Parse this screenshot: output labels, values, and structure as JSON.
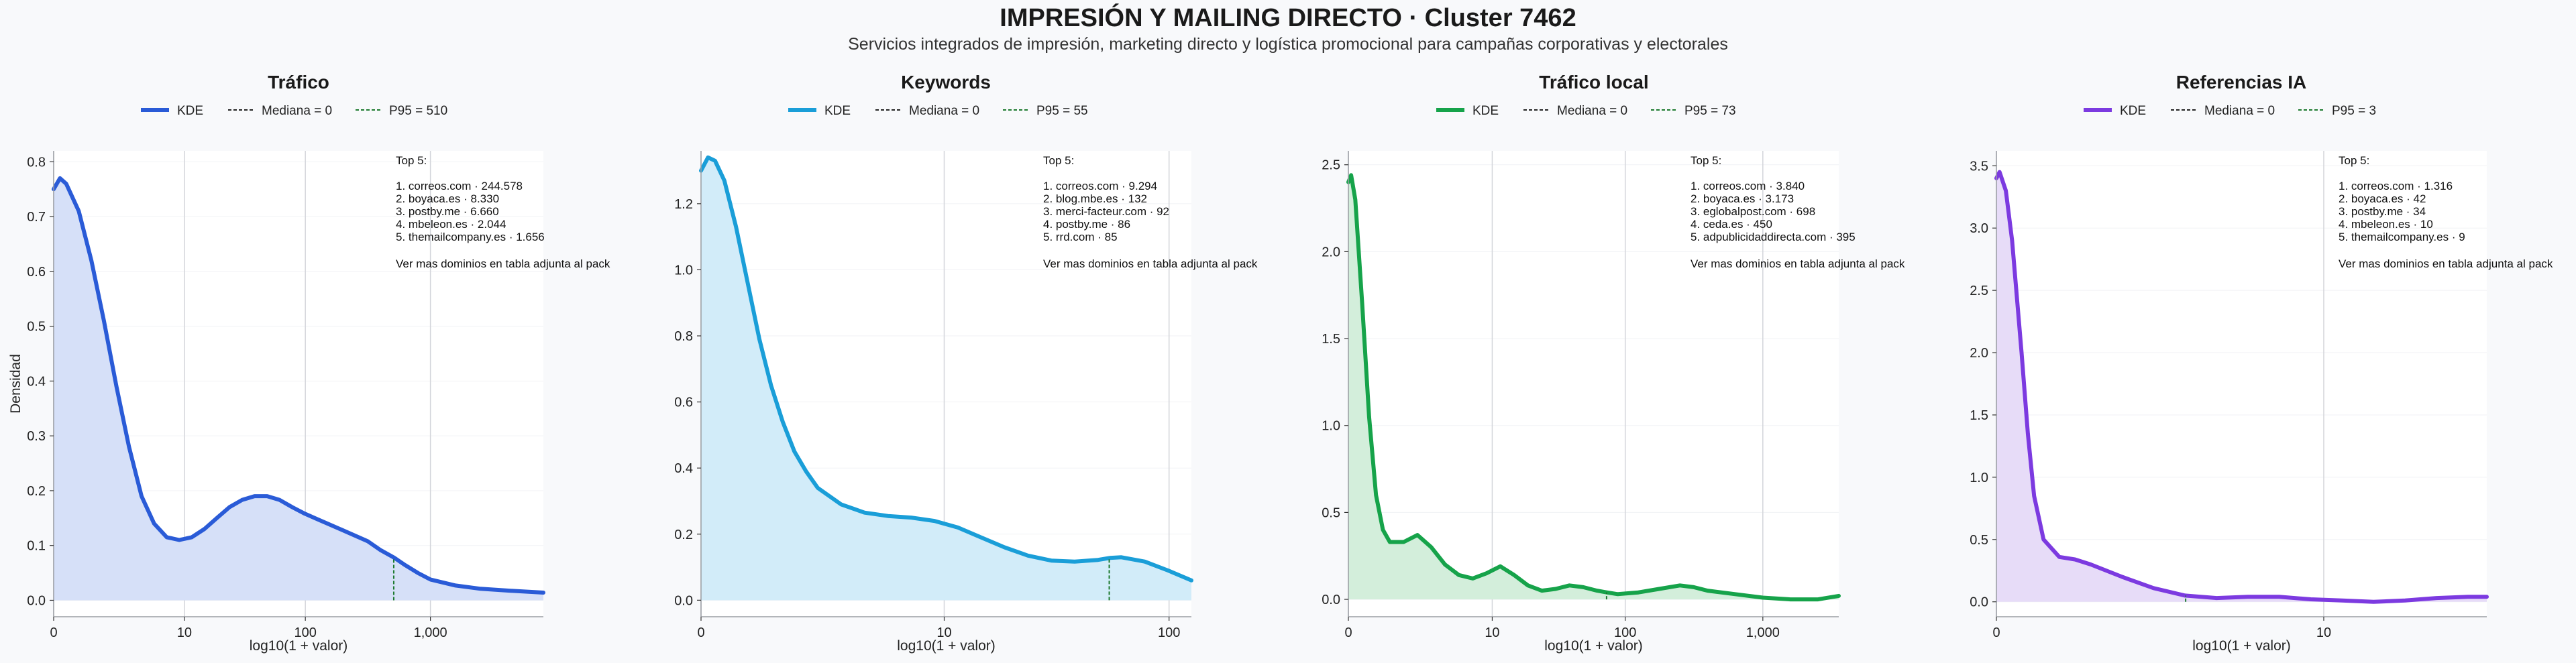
{
  "page": {
    "title": "IMPRESIÓN Y MAILING DIRECTO · Cluster 7462",
    "subtitle": "Servicios integrados de impresión, marketing directo y logística promocional para campañas corporativas y electorales"
  },
  "chart_data": [
    {
      "type": "area",
      "title": "Tráfico",
      "xlabel": "log10(1 + valor)",
      "ylabel": "Densidad",
      "color": "#2a5bd7",
      "fill": "#d6e0f8",
      "x_scale": "log10(1+x)",
      "xlim": [
        0,
        3.9
      ],
      "ylim": [
        -0.03,
        0.82
      ],
      "xticks": [
        0,
        10,
        100,
        1000
      ],
      "xtick_labels": [
        "0",
        "10",
        "100",
        "1,000"
      ],
      "yticks": [
        0,
        0.1,
        0.2,
        0.3,
        0.4,
        0.5,
        0.6,
        0.7,
        0.8
      ],
      "ytick_labels": [
        "0.0",
        "0.1",
        "0.2",
        "0.3",
        "0.4",
        "0.5",
        "0.6",
        "0.7",
        "0.8"
      ],
      "grid": "vertical at x ticks",
      "legend": [
        {
          "label": "KDE",
          "style": "solid"
        },
        {
          "label": "Mediana = 0",
          "style": "dashed"
        },
        {
          "label": "P95 = 510",
          "style": "dashed-green"
        }
      ],
      "median": 0,
      "p95": 510,
      "series": [
        {
          "name": "KDE",
          "x": [
            0,
            0.05,
            0.1,
            0.2,
            0.3,
            0.4,
            0.5,
            0.6,
            0.7,
            0.8,
            0.9,
            1.0,
            1.1,
            1.2,
            1.3,
            1.4,
            1.5,
            1.6,
            1.7,
            1.8,
            1.9,
            2.0,
            2.1,
            2.2,
            2.3,
            2.4,
            2.5,
            2.6,
            2.71,
            2.8,
            2.9,
            3.0,
            3.2,
            3.4,
            3.6,
            3.9
          ],
          "y": [
            0.75,
            0.77,
            0.76,
            0.71,
            0.62,
            0.51,
            0.39,
            0.28,
            0.19,
            0.14,
            0.115,
            0.11,
            0.115,
            0.13,
            0.15,
            0.17,
            0.183,
            0.19,
            0.19,
            0.183,
            0.17,
            0.158,
            0.148,
            0.138,
            0.128,
            0.118,
            0.108,
            0.092,
            0.078,
            0.064,
            0.05,
            0.038,
            0.027,
            0.021,
            0.018,
            0.014
          ]
        }
      ],
      "annotation": {
        "title": "Top 5:",
        "items": [
          "1. correos.com · 244.578",
          "2. boyaca.es · 8.330",
          "3. postby.me · 6.660",
          "4. mbeleon.es · 2.044",
          "5. themailcompany.es · 1.656"
        ],
        "footer": "Ver mas dominios en tabla adjunta al pack"
      }
    },
    {
      "type": "area",
      "title": "Keywords",
      "xlabel": "log10(1 + valor)",
      "ylabel": "",
      "color": "#1a9ed8",
      "fill": "#d2ecf9",
      "x_scale": "log10(1+x)",
      "xlim": [
        0,
        2.1
      ],
      "ylim": [
        -0.05,
        1.36
      ],
      "xticks": [
        0,
        10,
        100
      ],
      "xtick_labels": [
        "0",
        "10",
        "100"
      ],
      "yticks": [
        0,
        0.2,
        0.4,
        0.6,
        0.8,
        1.0,
        1.2
      ],
      "ytick_labels": [
        "0.0",
        "0.2",
        "0.4",
        "0.6",
        "0.8",
        "1.0",
        "1.2"
      ],
      "grid": "vertical at x ticks",
      "legend": [
        {
          "label": "KDE",
          "style": "solid"
        },
        {
          "label": "Mediana = 0",
          "style": "dashed"
        },
        {
          "label": "P95 = 55",
          "style": "dashed-green"
        }
      ],
      "median": 0,
      "p95": 55,
      "series": [
        {
          "name": "KDE",
          "x": [
            0,
            0.03,
            0.06,
            0.1,
            0.15,
            0.2,
            0.25,
            0.3,
            0.35,
            0.4,
            0.45,
            0.5,
            0.6,
            0.7,
            0.8,
            0.9,
            1.0,
            1.1,
            1.2,
            1.3,
            1.4,
            1.5,
            1.6,
            1.7,
            1.75,
            1.8,
            1.9,
            2.0,
            2.1
          ],
          "y": [
            1.3,
            1.34,
            1.33,
            1.27,
            1.13,
            0.96,
            0.79,
            0.65,
            0.54,
            0.45,
            0.39,
            0.34,
            0.29,
            0.265,
            0.255,
            0.25,
            0.24,
            0.22,
            0.19,
            0.16,
            0.135,
            0.12,
            0.117,
            0.122,
            0.128,
            0.13,
            0.117,
            0.09,
            0.06
          ]
        }
      ],
      "annotation": {
        "title": "Top 5:",
        "items": [
          "1. correos.com · 9.294",
          "2. blog.mbe.es · 132",
          "3. merci-facteur.com · 92",
          "4. postby.me · 86",
          "5. rrd.com · 85"
        ],
        "footer": "Ver mas dominios en tabla adjunta al pack"
      }
    },
    {
      "type": "area",
      "title": "Tráfico local",
      "xlabel": "log10(1 + valor)",
      "ylabel": "",
      "color": "#16a34a",
      "fill": "#d3eedb",
      "x_scale": "log10(1+x)",
      "xlim": [
        0,
        3.55
      ],
      "ylim": [
        -0.1,
        2.58
      ],
      "xticks": [
        0,
        10,
        100,
        1000
      ],
      "xtick_labels": [
        "0",
        "10",
        "100",
        "1,000"
      ],
      "yticks": [
        0,
        0.5,
        1.0,
        1.5,
        2.0,
        2.5
      ],
      "ytick_labels": [
        "0.0",
        "0.5",
        "1.0",
        "1.5",
        "2.0",
        "2.5"
      ],
      "grid": "vertical at x ticks",
      "legend": [
        {
          "label": "KDE",
          "style": "solid"
        },
        {
          "label": "Mediana = 0",
          "style": "dashed"
        },
        {
          "label": "P95 = 73",
          "style": "dashed-green"
        }
      ],
      "median": 0,
      "p95": 73,
      "series": [
        {
          "name": "KDE",
          "x": [
            0,
            0.02,
            0.05,
            0.1,
            0.15,
            0.2,
            0.25,
            0.3,
            0.4,
            0.5,
            0.6,
            0.7,
            0.8,
            0.9,
            1.0,
            1.1,
            1.2,
            1.3,
            1.4,
            1.5,
            1.6,
            1.7,
            1.8,
            1.87,
            1.95,
            2.1,
            2.25,
            2.4,
            2.5,
            2.6,
            2.8,
            3.0,
            3.2,
            3.4,
            3.55
          ],
          "y": [
            2.4,
            2.44,
            2.3,
            1.7,
            1.05,
            0.6,
            0.4,
            0.33,
            0.33,
            0.37,
            0.3,
            0.2,
            0.14,
            0.12,
            0.15,
            0.19,
            0.14,
            0.08,
            0.05,
            0.06,
            0.08,
            0.07,
            0.05,
            0.04,
            0.03,
            0.04,
            0.06,
            0.08,
            0.07,
            0.05,
            0.03,
            0.01,
            0.0,
            0.0,
            0.02
          ]
        }
      ],
      "annotation": {
        "title": "Top 5:",
        "items": [
          "1. correos.com · 3.840",
          "2. boyaca.es · 3.173",
          "3. eglobalpost.com · 698",
          "4. ceda.es · 450",
          "5. adpublicidaddirecta.com · 395"
        ],
        "footer": "Ver mas dominios en tabla adjunta al pack"
      }
    },
    {
      "type": "area",
      "title": "Referencias IA",
      "xlabel": "log10(1 + valor)",
      "ylabel": "",
      "color": "#7c3ae0",
      "fill": "#e7dcf8",
      "x_scale": "log10(1+x)",
      "xlim": [
        0,
        1.56
      ],
      "ylim": [
        -0.12,
        3.62
      ],
      "xticks": [
        0,
        10
      ],
      "xtick_labels": [
        "0",
        "10"
      ],
      "yticks": [
        0,
        0.5,
        1.0,
        1.5,
        2.0,
        2.5,
        3.0,
        3.5
      ],
      "ytick_labels": [
        "0.0",
        "0.5",
        "1.0",
        "1.5",
        "2.0",
        "2.5",
        "3.0",
        "3.5"
      ],
      "grid": "vertical at x ticks",
      "legend": [
        {
          "label": "KDE",
          "style": "solid"
        },
        {
          "label": "Mediana = 0",
          "style": "dashed"
        },
        {
          "label": "P95 = 3",
          "style": "dashed-green"
        }
      ],
      "median": 0,
      "p95": 3,
      "series": [
        {
          "name": "KDE",
          "x": [
            0,
            0.01,
            0.03,
            0.05,
            0.08,
            0.1,
            0.12,
            0.15,
            0.2,
            0.25,
            0.3,
            0.4,
            0.5,
            0.6,
            0.7,
            0.8,
            0.9,
            1.0,
            1.1,
            1.2,
            1.3,
            1.4,
            1.5,
            1.56
          ],
          "y": [
            3.4,
            3.45,
            3.3,
            2.9,
            2.0,
            1.35,
            0.85,
            0.5,
            0.36,
            0.34,
            0.3,
            0.2,
            0.11,
            0.05,
            0.03,
            0.04,
            0.04,
            0.02,
            0.01,
            0.0,
            0.01,
            0.03,
            0.04,
            0.04
          ]
        }
      ],
      "annotation": {
        "title": "Top 5:",
        "items": [
          "1. correos.com · 1.316",
          "2. boyaca.es · 42",
          "3. postby.me · 34",
          "4. mbeleon.es · 10",
          "5. themailcompany.es · 9"
        ],
        "footer": "Ver mas dominios en tabla adjunta al pack"
      }
    }
  ]
}
